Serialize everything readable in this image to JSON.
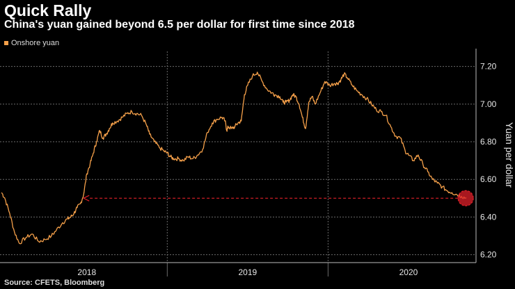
{
  "colors": {
    "background": "#000000",
    "series": "#f5a04a",
    "grid": "#6b6b6b",
    "axis_text": "#e6e6e6",
    "annotation": "#e0202a"
  },
  "source": "Source: CFETS, Bloomberg",
  "chart_data": {
    "type": "line",
    "title": "Quick Rally",
    "subtitle": "China's yuan gained beyond 6.5 per dollar for first time since 2018",
    "legend": [
      {
        "name": "Onshore yuan",
        "color": "#f5a04a"
      }
    ],
    "legend_position": "top-left",
    "ylabel": "Yuan per dollar",
    "xlabel": "",
    "ylim": [
      6.18,
      7.28
    ],
    "yticks": [
      6.2,
      6.4,
      6.6,
      6.8,
      7.0,
      7.2
    ],
    "ytick_labels": [
      "6.20",
      "6.40",
      "6.60",
      "6.80",
      "7.00",
      "7.20"
    ],
    "xlim": [
      2017.96,
      2020.92
    ],
    "xticks": [
      2018.5,
      2019.5,
      2020.5
    ],
    "xtick_labels": [
      "2018",
      "2019",
      "2020"
    ],
    "x_boundaries": [
      2019.0,
      2020.0
    ],
    "grid": true,
    "series": [
      {
        "name": "Onshore yuan",
        "x": [
          2017.97,
          2017.99,
          2018.02,
          2018.05,
          2018.08,
          2018.12,
          2018.16,
          2018.2,
          2018.24,
          2018.28,
          2018.31,
          2018.35,
          2018.38,
          2018.4,
          2018.42,
          2018.44,
          2018.46,
          2018.48,
          2018.5,
          2018.52,
          2018.54,
          2018.56,
          2018.58,
          2018.6,
          2018.62,
          2018.64,
          2018.66,
          2018.69,
          2018.72,
          2018.75,
          2018.78,
          2018.81,
          2018.84,
          2018.87,
          2018.89,
          2018.92,
          2018.95,
          2018.98,
          2019.0,
          2019.02,
          2019.04,
          2019.07,
          2019.1,
          2019.13,
          2019.16,
          2019.19,
          2019.22,
          2019.25,
          2019.28,
          2019.31,
          2019.34,
          2019.36,
          2019.37,
          2019.38,
          2019.4,
          2019.42,
          2019.44,
          2019.46,
          2019.48,
          2019.5,
          2019.53,
          2019.56,
          2019.59,
          2019.62,
          2019.65,
          2019.67,
          2019.7,
          2019.72,
          2019.74,
          2019.76,
          2019.78,
          2019.8,
          2019.82,
          2019.84,
          2019.86,
          2019.88,
          2019.9,
          2019.92,
          2019.95,
          2019.98,
          2020.01,
          2020.04,
          2020.06,
          2020.08,
          2020.1,
          2020.12,
          2020.15,
          2020.18,
          2020.21,
          2020.24,
          2020.27,
          2020.3,
          2020.33,
          2020.36,
          2020.39,
          2020.42,
          2020.45,
          2020.48,
          2020.5,
          2020.53,
          2020.56,
          2020.59,
          2020.62,
          2020.65,
          2020.68,
          2020.71,
          2020.74,
          2020.77,
          2020.8,
          2020.83,
          2020.86
        ],
        "values": [
          6.53,
          6.5,
          6.42,
          6.32,
          6.26,
          6.29,
          6.31,
          6.27,
          6.28,
          6.3,
          6.33,
          6.37,
          6.39,
          6.4,
          6.42,
          6.45,
          6.47,
          6.52,
          6.63,
          6.68,
          6.74,
          6.8,
          6.86,
          6.82,
          6.84,
          6.87,
          6.9,
          6.91,
          6.93,
          6.95,
          6.96,
          6.95,
          6.94,
          6.89,
          6.84,
          6.8,
          6.77,
          6.75,
          6.74,
          6.72,
          6.71,
          6.71,
          6.7,
          6.72,
          6.71,
          6.73,
          6.76,
          6.85,
          6.9,
          6.92,
          6.93,
          6.91,
          6.86,
          6.88,
          6.87,
          6.88,
          6.9,
          6.91,
          7.05,
          7.1,
          7.15,
          7.17,
          7.12,
          7.08,
          7.06,
          7.05,
          7.04,
          7.01,
          7.01,
          7.02,
          7.05,
          7.04,
          7.0,
          6.93,
          6.87,
          7.01,
          7.04,
          7.0,
          7.06,
          7.12,
          7.1,
          7.11,
          7.11,
          7.13,
          7.16,
          7.14,
          7.1,
          7.07,
          7.05,
          7.03,
          7.0,
          6.97,
          6.96,
          6.94,
          6.88,
          6.83,
          6.82,
          6.75,
          6.73,
          6.7,
          6.73,
          6.68,
          6.64,
          6.6,
          6.58,
          6.56,
          6.54,
          6.53,
          6.52,
          6.51,
          6.5
        ]
      }
    ],
    "annotation": {
      "type": "arrow",
      "value": 6.5,
      "from_x": 2020.86,
      "to_x": 2018.48,
      "marker": "circle"
    }
  }
}
